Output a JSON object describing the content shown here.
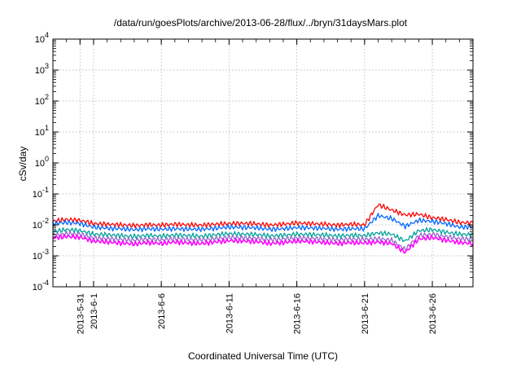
{
  "chart_data": {
    "type": "line",
    "title": "/data/run/goesPlots/archive/2013-06-28/flux/../bryn/31daysMars.plot",
    "xlabel": "Coordinated Universal Time (UTC)",
    "ylabel": "cSv/day",
    "yscale": "log",
    "ylim": [
      0.0001,
      10000
    ],
    "xlim": [
      "2013-05-29",
      "2013-06-29"
    ],
    "grid": true,
    "legend": "none",
    "y_ticks": [
      {
        "base": "10",
        "exp": "-4"
      },
      {
        "base": "10",
        "exp": "-3"
      },
      {
        "base": "10",
        "exp": "-2"
      },
      {
        "base": "10",
        "exp": "-1"
      },
      {
        "base": "10",
        "exp": "0"
      },
      {
        "base": "10",
        "exp": "1"
      },
      {
        "base": "10",
        "exp": "2"
      },
      {
        "base": "10",
        "exp": "3"
      },
      {
        "base": "10",
        "exp": "4"
      }
    ],
    "x_ticks": [
      {
        "date": "2013-05-31",
        "label": "2013-5-31"
      },
      {
        "date": "2013-06-01",
        "label": "2013-6-1"
      },
      {
        "date": "2013-06-06",
        "label": "2013-6-6"
      },
      {
        "date": "2013-06-11",
        "label": "2013-6-11"
      },
      {
        "date": "2013-06-16",
        "label": "2013-6-16"
      },
      {
        "date": "2013-06-21",
        "label": "2013-6-21"
      },
      {
        "date": "2013-06-26",
        "label": "2013-6-26"
      }
    ],
    "x": [
      "2013-05-29",
      "2013-05-30",
      "2013-05-31",
      "2013-06-01",
      "2013-06-02",
      "2013-06-03",
      "2013-06-04",
      "2013-06-05",
      "2013-06-06",
      "2013-06-07",
      "2013-06-08",
      "2013-06-09",
      "2013-06-10",
      "2013-06-11",
      "2013-06-12",
      "2013-06-13",
      "2013-06-14",
      "2013-06-15",
      "2013-06-16",
      "2013-06-17",
      "2013-06-18",
      "2013-06-19",
      "2013-06-20",
      "2013-06-21",
      "2013-06-22",
      "2013-06-23",
      "2013-06-24",
      "2013-06-25",
      "2013-06-26",
      "2013-06-27",
      "2013-06-28",
      "2013-06-29"
    ],
    "series": [
      {
        "color": "#ff0000",
        "values": [
          0.013,
          0.015,
          0.014,
          0.011,
          0.0105,
          0.01,
          0.0095,
          0.01,
          0.0098,
          0.0105,
          0.01,
          0.0098,
          0.0105,
          0.011,
          0.0112,
          0.0108,
          0.0098,
          0.0105,
          0.0115,
          0.011,
          0.0105,
          0.0098,
          0.0105,
          0.01,
          0.045,
          0.03,
          0.021,
          0.022,
          0.017,
          0.015,
          0.012,
          0.0115
        ]
      },
      {
        "color": "#0066ff",
        "values": [
          0.011,
          0.012,
          0.011,
          0.0085,
          0.0078,
          0.0075,
          0.007,
          0.0075,
          0.0072,
          0.0075,
          0.0073,
          0.0072,
          0.0078,
          0.0085,
          0.0083,
          0.008,
          0.0072,
          0.0075,
          0.0082,
          0.008,
          0.0077,
          0.0072,
          0.0075,
          0.0075,
          0.02,
          0.016,
          0.009,
          0.014,
          0.013,
          0.011,
          0.0085,
          0.0085
        ]
      },
      {
        "color": "#00a09a",
        "values": [
          0.006,
          0.007,
          0.0065,
          0.005,
          0.0048,
          0.0045,
          0.0042,
          0.0046,
          0.0043,
          0.0047,
          0.0045,
          0.0043,
          0.0048,
          0.0052,
          0.005,
          0.0049,
          0.0044,
          0.0046,
          0.005,
          0.0049,
          0.0047,
          0.0044,
          0.0046,
          0.0045,
          0.0055,
          0.005,
          0.003,
          0.0065,
          0.007,
          0.0058,
          0.005,
          0.0048
        ]
      },
      {
        "color": "#9966cc",
        "values": [
          0.0045,
          0.0052,
          0.005,
          0.0038,
          0.0036,
          0.0034,
          0.0032,
          0.0035,
          0.0033,
          0.0036,
          0.0034,
          0.0033,
          0.0036,
          0.004,
          0.0038,
          0.0037,
          0.0033,
          0.0035,
          0.0038,
          0.0037,
          0.0035,
          0.0033,
          0.0035,
          0.0034,
          0.0036,
          0.0032,
          0.0016,
          0.0045,
          0.005,
          0.0042,
          0.0036,
          0.0034
        ]
      },
      {
        "color": "#ff00ff",
        "values": [
          0.0038,
          0.0042,
          0.004,
          0.003,
          0.0028,
          0.0026,
          0.0024,
          0.0027,
          0.0025,
          0.0028,
          0.0026,
          0.0025,
          0.0028,
          0.0031,
          0.003,
          0.0029,
          0.0025,
          0.0027,
          0.003,
          0.0029,
          0.0027,
          0.0025,
          0.0027,
          0.0026,
          0.0028,
          0.0025,
          0.0013,
          0.0035,
          0.0039,
          0.0032,
          0.0027,
          0.0025
        ]
      }
    ]
  }
}
